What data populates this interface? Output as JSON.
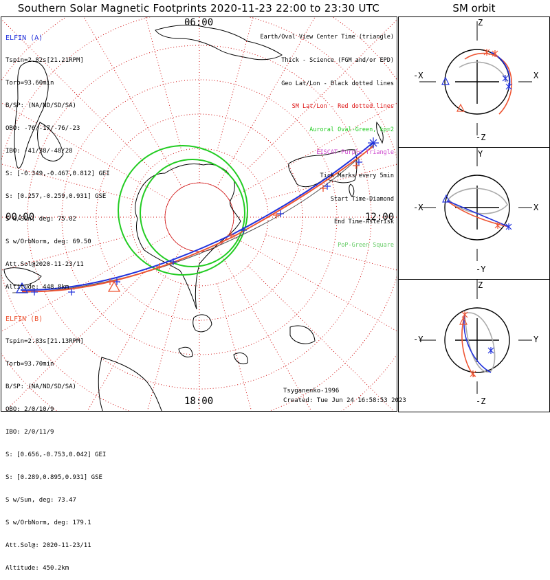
{
  "title": "Southern Solar Magnetic Footprints 2020-11-23 22:00 to 23:30 UTC",
  "side_title": "SM orbit",
  "map": {
    "mlt_labels": {
      "top": "06:00",
      "left": "00:00",
      "right": "12:00",
      "bottom": "18:00"
    },
    "colors": {
      "grid": "#d01010",
      "auroral_oval": "#22cc22",
      "elfin_a": "#2233dd",
      "elfin_b": "#ee5533",
      "coast": "#000000"
    }
  },
  "elfin_a": {
    "name": "ELFIN (A)",
    "color": "#2233dd",
    "lines": [
      "Tspin=2.82s[21.21RPM]",
      "Torb=93.60min",
      "B/SP: (NA/ND/SD/SA)",
      "OBO: -76/-17/-76/-23",
      "IBO: -41/38/-48/28",
      "S: [-0.349,-0.467,0.812] GEI",
      "S: [0.257,-0.259,0.931] GSE",
      "S w/Sun, deg: 75.02",
      "S w/OrbNorm, deg: 69.50",
      "Att.Sol@2020-11-23/11",
      "Altitude: 448.8km"
    ]
  },
  "elfin_b": {
    "name": "ELFIN (B)",
    "color": "#ee5533",
    "lines": [
      "Tspin=2.83s[21.13RPM]",
      "Torb=93.70min",
      "B/SP: (NA/ND/SD/SA)",
      "OBO: 2/0/10/9",
      "IBO: 2/0/11/9",
      "S: [0.656,-0.753,0.042] GEI",
      "S: [0.289,0.895,0.931] GSE",
      "S w/Sun, deg: 73.47",
      "S w/OrbNorm, deg: 179.1",
      "Att.Sol@: 2020-11-23/11",
      "Altitude: 450.2km"
    ]
  },
  "legend": [
    {
      "text": "Earth/Oval View Center Time (triangle)",
      "color": "#000000"
    },
    {
      "text": "Thick - Science (FGM and/or EPD)",
      "color": "#000000"
    },
    {
      "text": "Geo Lat/Lon - Black dotted lines",
      "color": "#000000"
    },
    {
      "text": "SM Lat/Lon - Red dotted lines",
      "color": "#dd1111"
    },
    {
      "text": "Auroral Oval-Green, kp=2",
      "color": "#22cc22"
    },
    {
      "text": "EISCAT-Purple Triangle",
      "color": "#cc44cc"
    },
    {
      "text": "Tick Marks every 5min",
      "color": "#000000"
    },
    {
      "text": "Start Time-Diamond",
      "color": "#000000"
    },
    {
      "text": "End Time-Asterisk",
      "color": "#000000"
    },
    {
      "text": "PoP-Green Square",
      "color": "#66cc66"
    }
  ],
  "credits": {
    "author": "Tsyganenko-1996",
    "created": "Created: Tue Jun 24 16:58:53 2023"
  },
  "sm_panels": [
    {
      "top": "Z",
      "bottom": "-Z",
      "left": "-X",
      "right": "X"
    },
    {
      "top": "Y",
      "bottom": "-Y",
      "left": "-X",
      "right": "X"
    },
    {
      "top": "Z",
      "bottom": "-Z",
      "left": "-Y",
      "right": "Y"
    }
  ]
}
